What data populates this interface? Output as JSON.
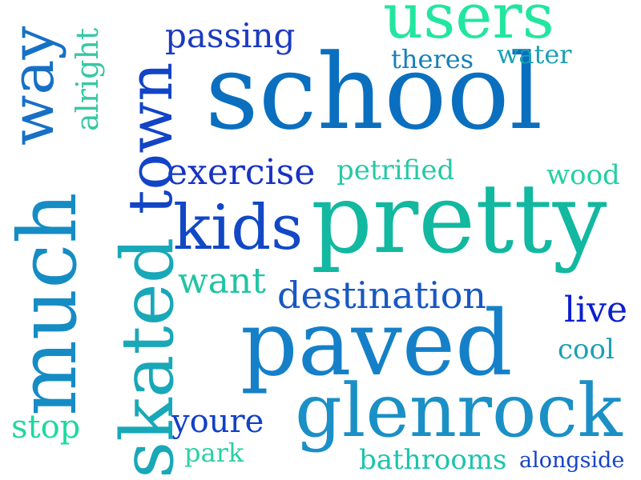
{
  "words": [
    {
      "text": "school",
      "color": "#0a6fbf"
    },
    {
      "text": "pretty",
      "color": "#12b8a0"
    },
    {
      "text": "paved",
      "color": "#1580c8"
    },
    {
      "text": "glenrock",
      "color": "#1a90c6"
    },
    {
      "text": "much",
      "color": "#168cc4"
    },
    {
      "text": "skated",
      "color": "#18a8b8"
    },
    {
      "text": "town",
      "color": "#1244c8"
    },
    {
      "text": "users",
      "color": "#22e6a0"
    },
    {
      "text": "kids",
      "color": "#1248c6"
    },
    {
      "text": "way",
      "color": "#1770c6"
    },
    {
      "text": "exercise",
      "color": "#1832c4"
    },
    {
      "text": "destination",
      "color": "#1858c2"
    },
    {
      "text": "passing",
      "color": "#1c3ac0"
    },
    {
      "text": "alright",
      "color": "#36c8a4"
    },
    {
      "text": "theres",
      "color": "#1780b8"
    },
    {
      "text": "water",
      "color": "#1aa0b4"
    },
    {
      "text": "petrified",
      "color": "#28c8a6"
    },
    {
      "text": "wood",
      "color": "#24d0a2"
    },
    {
      "text": "want",
      "color": "#20c4a4"
    },
    {
      "text": "live",
      "color": "#0c1ed0"
    },
    {
      "text": "cool",
      "color": "#1aa0b4"
    },
    {
      "text": "stop",
      "color": "#1ed8a0"
    },
    {
      "text": "youre",
      "color": "#1240c6"
    },
    {
      "text": "park",
      "color": "#2ad0a4"
    },
    {
      "text": "bathrooms",
      "color": "#1cc4ac"
    },
    {
      "text": "alongside",
      "color": "#1844c4"
    }
  ]
}
